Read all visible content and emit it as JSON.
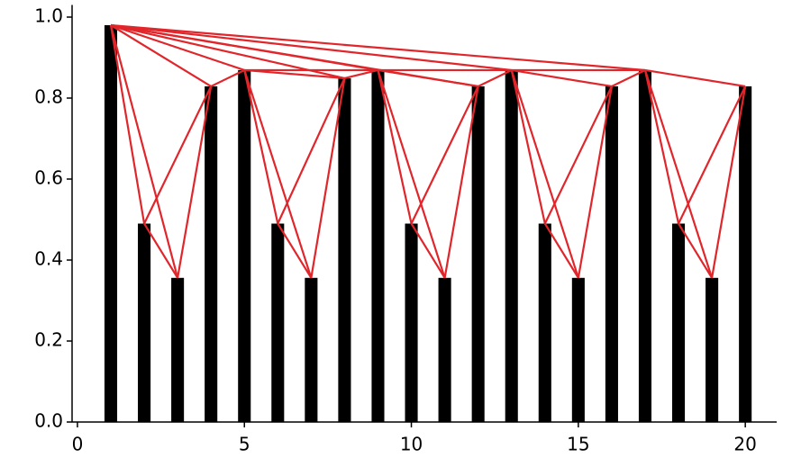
{
  "chart_data": {
    "type": "bar",
    "x": [
      1,
      2,
      3,
      4,
      5,
      6,
      7,
      8,
      9,
      10,
      11,
      12,
      13,
      14,
      15,
      16,
      17,
      18,
      19,
      20
    ],
    "values": [
      0.98,
      0.49,
      0.356,
      0.829,
      0.869,
      0.49,
      0.356,
      0.849,
      0.869,
      0.49,
      0.356,
      0.829,
      0.869,
      0.49,
      0.356,
      0.829,
      0.869,
      0.49,
      0.356,
      0.829
    ],
    "color": "#000000",
    "edge_color": "#e0262b",
    "visibility_edges": true,
    "xlim": [
      -0.16,
      20.94
    ],
    "xticks": [
      0,
      5,
      10,
      15,
      20
    ],
    "ylim": [
      0,
      1.03
    ],
    "yticks": [
      {
        "value": 0,
        "label": "0.0"
      },
      0.2,
      0.4,
      0.6,
      0.8,
      {
        "value": 1,
        "label": "1.0"
      }
    ]
  }
}
